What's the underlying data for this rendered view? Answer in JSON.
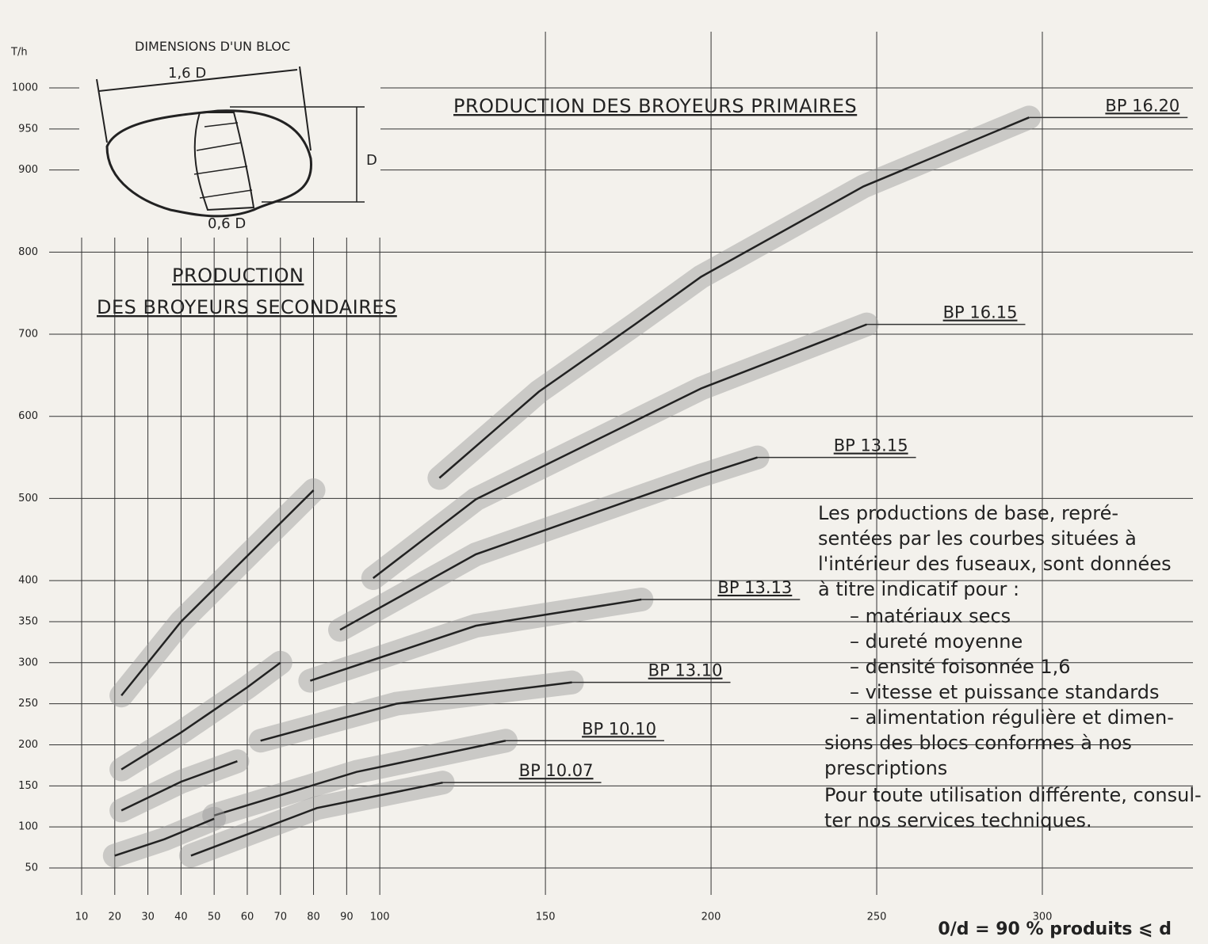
{
  "chart_data": {
    "type": "line",
    "title": "PRODUCTION DES BROYEURS PRIMAIRES",
    "subtitle": [
      "PRODUCTION",
      "DES BROYEURS SECONDAIRES"
    ],
    "y_label": "T/h",
    "x_label": "0/d = 90 % produits ⩽ d",
    "inset": {
      "title": "DIMENSIONS D'UN BLOC",
      "width": "1,6 D",
      "height": "D",
      "slice": "0,6 D"
    },
    "note": [
      "Les productions de base, repré-",
      "sentées par les courbes situées à",
      "l'intérieur des fuseaux, sont données",
      "à titre indicatif pour :",
      "– matériaux secs",
      "– dureté moyenne",
      "– densité foisonnée 1,6",
      "– vitesse et puissance standards",
      "– alimentation régulière et dimen-",
      "sions des blocs conformes à nos",
      "prescriptions",
      "Pour toute utilisation différente, consul-",
      "ter nos services techniques."
    ],
    "xlim": [
      10,
      300
    ],
    "ylim": [
      50,
      1000
    ],
    "xticks": [
      10,
      20,
      30,
      40,
      50,
      60,
      70,
      80,
      90,
      100,
      150,
      200,
      250,
      300
    ],
    "yticks": [
      50,
      100,
      150,
      200,
      250,
      300,
      350,
      400,
      500,
      600,
      700,
      800,
      900,
      950,
      1000
    ],
    "grid": true,
    "series": [
      {
        "name": "BP 16.20",
        "color": "#222",
        "x": [
          118,
          148,
          177,
          197,
          246,
          296
        ],
        "values": [
          525,
          630,
          712,
          770,
          880,
          964
        ]
      },
      {
        "name": "BP 16.15",
        "color": "#222",
        "x": [
          98,
          129,
          197,
          247
        ],
        "values": [
          403,
          499,
          634,
          712
        ]
      },
      {
        "name": "BP 13.15",
        "color": "#222",
        "x": [
          88,
          129,
          197,
          214
        ],
        "values": [
          340,
          432,
          528,
          550
        ]
      },
      {
        "name": "BP 13.13",
        "color": "#222",
        "x": [
          79,
          129,
          179
        ],
        "values": [
          278,
          345,
          377
        ]
      },
      {
        "name": "BP 13.10",
        "color": "#222",
        "x": [
          64,
          105,
          158
        ],
        "values": [
          205,
          250,
          276
        ]
      },
      {
        "name": "BP 10.10",
        "color": "#222",
        "x": [
          50,
          93,
          138
        ],
        "values": [
          114,
          167,
          205
        ]
      },
      {
        "name": "BP 10.07",
        "color": "#222",
        "x": [
          43,
          81,
          119
        ],
        "values": [
          65,
          123,
          154
        ]
      },
      {
        "color": "#222",
        "x": [
          22,
          40,
          60,
          80
        ],
        "values": [
          260,
          350,
          430,
          510
        ]
      },
      {
        "color": "#222",
        "x": [
          22,
          40,
          60,
          70
        ],
        "values": [
          170,
          215,
          270,
          300
        ]
      },
      {
        "color": "#222",
        "x": [
          22,
          40,
          57
        ],
        "values": [
          120,
          155,
          180
        ]
      },
      {
        "color": "#222",
        "x": [
          20,
          35,
          50
        ],
        "values": [
          65,
          85,
          110
        ]
      }
    ]
  }
}
